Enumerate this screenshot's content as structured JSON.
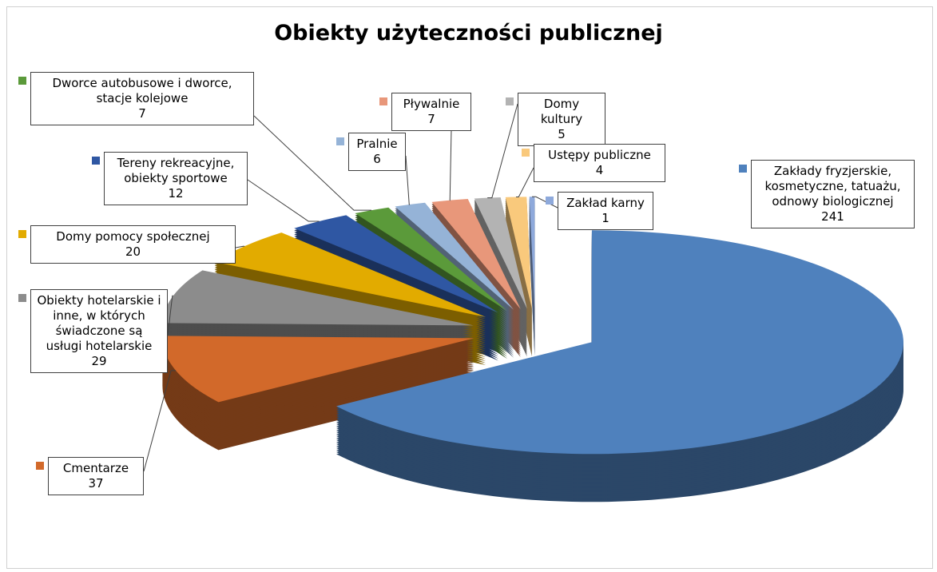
{
  "chart_data": {
    "type": "pie3d",
    "title": "Obiekty użyteczności publicznej",
    "categories": [
      "Zakłady fryzjerskie, kosmetyczne, tatuażu, odnowy biologicznej",
      "Cmentarze",
      "Obiekty hotelarskie i inne, w których świadczone są usługi hotelarskie",
      "Domy pomocy społecznej",
      "Tereny rekreacyjne, obiekty sportowe",
      "Dworce autobusowe i dworce, stacje kolejowe",
      "Pralnie",
      "Pływalnie",
      "Domy kultury",
      "Ustępy publiczne",
      "Zakład karny"
    ],
    "values": [
      241,
      37,
      29,
      20,
      12,
      7,
      6,
      7,
      5,
      4,
      1
    ],
    "colors": [
      "#4f81bd",
      "#d2692a",
      "#8c8c8c",
      "#e2ab00",
      "#2f57a3",
      "#5b9a3a",
      "#95b3d7",
      "#e8977a",
      "#b3b3b3",
      "#f9c97c",
      "#8ea9db"
    ]
  }
}
